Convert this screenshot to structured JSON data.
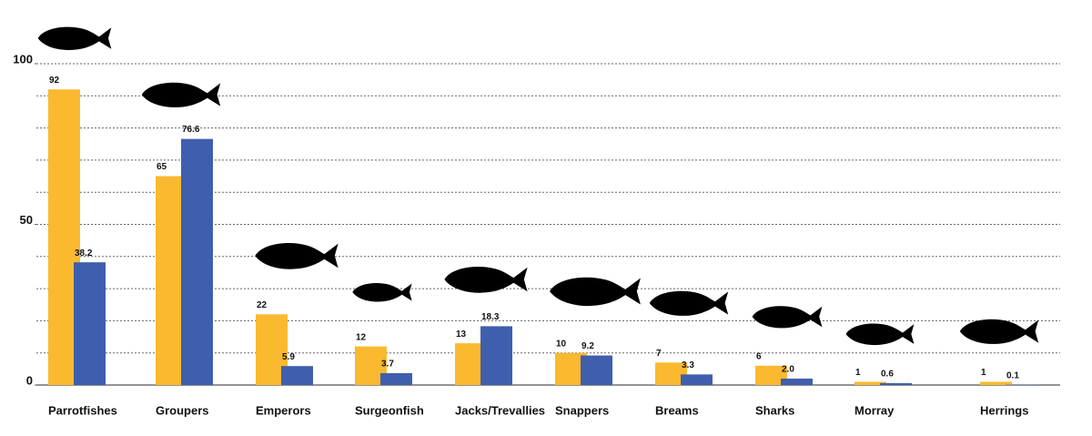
{
  "chart_data": {
    "type": "bar",
    "categories": [
      "Parrotfishes",
      "Groupers",
      "Emperors",
      "Surgeonfish",
      "Jacks/Trevallies",
      "Snappers",
      "Breams",
      "Sharks",
      "Morray",
      "Herrings"
    ],
    "series": [
      {
        "color": "#fbb92f",
        "values": [
          92,
          65,
          22,
          12,
          13,
          10,
          7,
          6,
          1,
          1
        ]
      },
      {
        "color": "#3f5fae",
        "values": [
          38.2,
          76.6,
          5.9,
          3.7,
          18.3,
          9.2,
          3.3,
          2.0,
          0.6,
          0.1
        ],
        "value_labels": [
          "38.2",
          "76.6",
          "5.9",
          "3.7",
          "18.3",
          "9.2",
          "3.3",
          "2.0",
          "0.6",
          "0.1"
        ]
      }
    ],
    "ylim": [
      0,
      100
    ],
    "yticks": [
      0,
      50,
      100
    ],
    "grid_lines": [
      10,
      20,
      30,
      40,
      50,
      60,
      70,
      80,
      90,
      100
    ],
    "grid": true
  }
}
